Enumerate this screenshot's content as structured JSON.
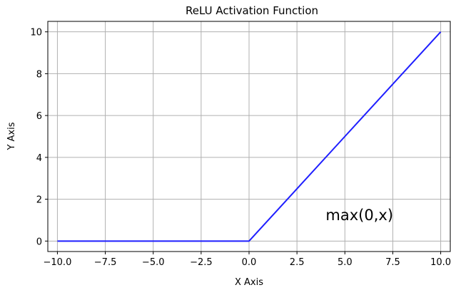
{
  "chart_data": {
    "type": "line",
    "title": "ReLU Activation Function",
    "xlabel": "X Axis",
    "ylabel": "Y Axis",
    "xlim": [
      -10.5,
      10.5
    ],
    "ylim": [
      -0.5,
      10.5
    ],
    "xticks": [
      -10.0,
      -7.5,
      -5.0,
      -2.5,
      0.0,
      2.5,
      5.0,
      7.5,
      10.0
    ],
    "xtick_labels": [
      "−10.0",
      "−7.5",
      "−5.0",
      "−2.5",
      "0.0",
      "2.5",
      "5.0",
      "7.5",
      "10.0"
    ],
    "yticks": [
      0,
      2,
      4,
      6,
      8,
      10
    ],
    "ytick_labels": [
      "0",
      "2",
      "4",
      "6",
      "8",
      "10"
    ],
    "grid": true,
    "series": [
      {
        "color": "#1f1fff",
        "x": [
          -10,
          -7.5,
          -5,
          -2.5,
          0,
          2.5,
          5,
          7.5,
          10
        ],
        "y": [
          0,
          0,
          0,
          0,
          0,
          2.5,
          5,
          7.5,
          10
        ]
      }
    ],
    "annotations": [
      {
        "text": "max(0,x)",
        "x": 4,
        "y": 1
      }
    ]
  }
}
